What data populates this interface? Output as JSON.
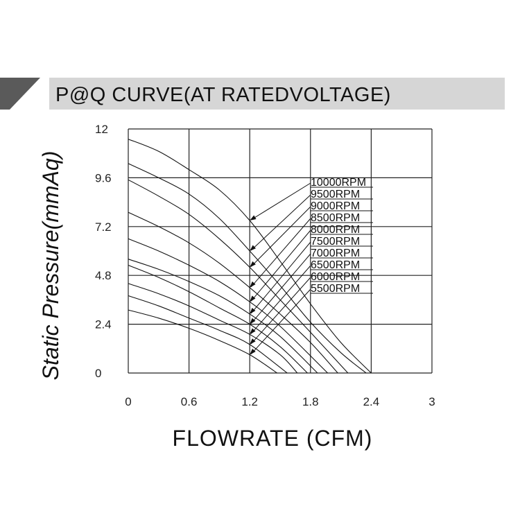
{
  "chart_data": {
    "type": "line",
    "title": "P@Q CURVE(AT RATEDVOLTAGE)",
    "xlabel": "FLOWRATE (CFM)",
    "ylabel": "Static Pressure(mmAq)",
    "xlim": [
      0,
      3
    ],
    "ylim": [
      0,
      12
    ],
    "x_ticks": [
      "0",
      "0.6",
      "1.2",
      "1.8",
      "2.4",
      "3"
    ],
    "y_ticks": [
      "12",
      "9.6",
      "7.2",
      "4.8",
      "2.4",
      "0"
    ],
    "grid": true,
    "legend_placement": "top-right",
    "series": [
      {
        "name": "10000RPM",
        "x": [
          0,
          0.3,
          0.6,
          0.9,
          1.2,
          1.5,
          1.8,
          2.1,
          2.4
        ],
        "y": [
          11.5,
          10.9,
          10.0,
          9.0,
          7.5,
          5.5,
          3.4,
          1.5,
          0
        ]
      },
      {
        "name": "9500RPM",
        "x": [
          0,
          0.3,
          0.6,
          0.9,
          1.2,
          1.5,
          1.8,
          2.1,
          2.35
        ],
        "y": [
          10.3,
          9.6,
          8.8,
          7.6,
          6.0,
          4.3,
          2.5,
          1.0,
          0
        ]
      },
      {
        "name": "9000RPM",
        "x": [
          0,
          0.3,
          0.6,
          0.9,
          1.2,
          1.5,
          1.8,
          2.17
        ],
        "y": [
          9.5,
          8.7,
          7.8,
          6.6,
          5.2,
          3.6,
          2.0,
          0
        ]
      },
      {
        "name": "8500RPM",
        "x": [
          0,
          0.3,
          0.6,
          0.9,
          1.2,
          1.5,
          1.8,
          2.07
        ],
        "y": [
          7.9,
          7.2,
          6.4,
          5.4,
          4.2,
          2.9,
          1.5,
          0
        ]
      },
      {
        "name": "8000RPM",
        "x": [
          0,
          0.3,
          0.6,
          0.9,
          1.2,
          1.5,
          1.97
        ],
        "y": [
          6.6,
          6.0,
          5.3,
          4.5,
          3.5,
          2.3,
          0
        ]
      },
      {
        "name": "7500RPM",
        "x": [
          0,
          0.3,
          0.6,
          0.9,
          1.2,
          1.5,
          1.87
        ],
        "y": [
          5.6,
          5.1,
          4.5,
          3.8,
          2.9,
          1.8,
          0
        ]
      },
      {
        "name": "7000RPM",
        "x": [
          0,
          0.3,
          0.6,
          0.9,
          1.2,
          1.5,
          1.77
        ],
        "y": [
          5.3,
          4.7,
          4.0,
          3.2,
          2.4,
          1.3,
          0
        ]
      },
      {
        "name": "6500RPM",
        "x": [
          0,
          0.3,
          0.6,
          0.9,
          1.2,
          1.5,
          1.67
        ],
        "y": [
          4.4,
          3.9,
          3.3,
          2.6,
          1.9,
          0.9,
          0
        ]
      },
      {
        "name": "6000RPM",
        "x": [
          0,
          0.3,
          0.6,
          0.9,
          1.2,
          1.57
        ],
        "y": [
          3.8,
          3.3,
          2.7,
          2.1,
          1.4,
          0
        ]
      },
      {
        "name": "5500RPM",
        "x": [
          0,
          0.3,
          0.6,
          0.9,
          1.2,
          1.47
        ],
        "y": [
          3.1,
          2.7,
          2.2,
          1.6,
          0.9,
          0
        ]
      }
    ]
  }
}
